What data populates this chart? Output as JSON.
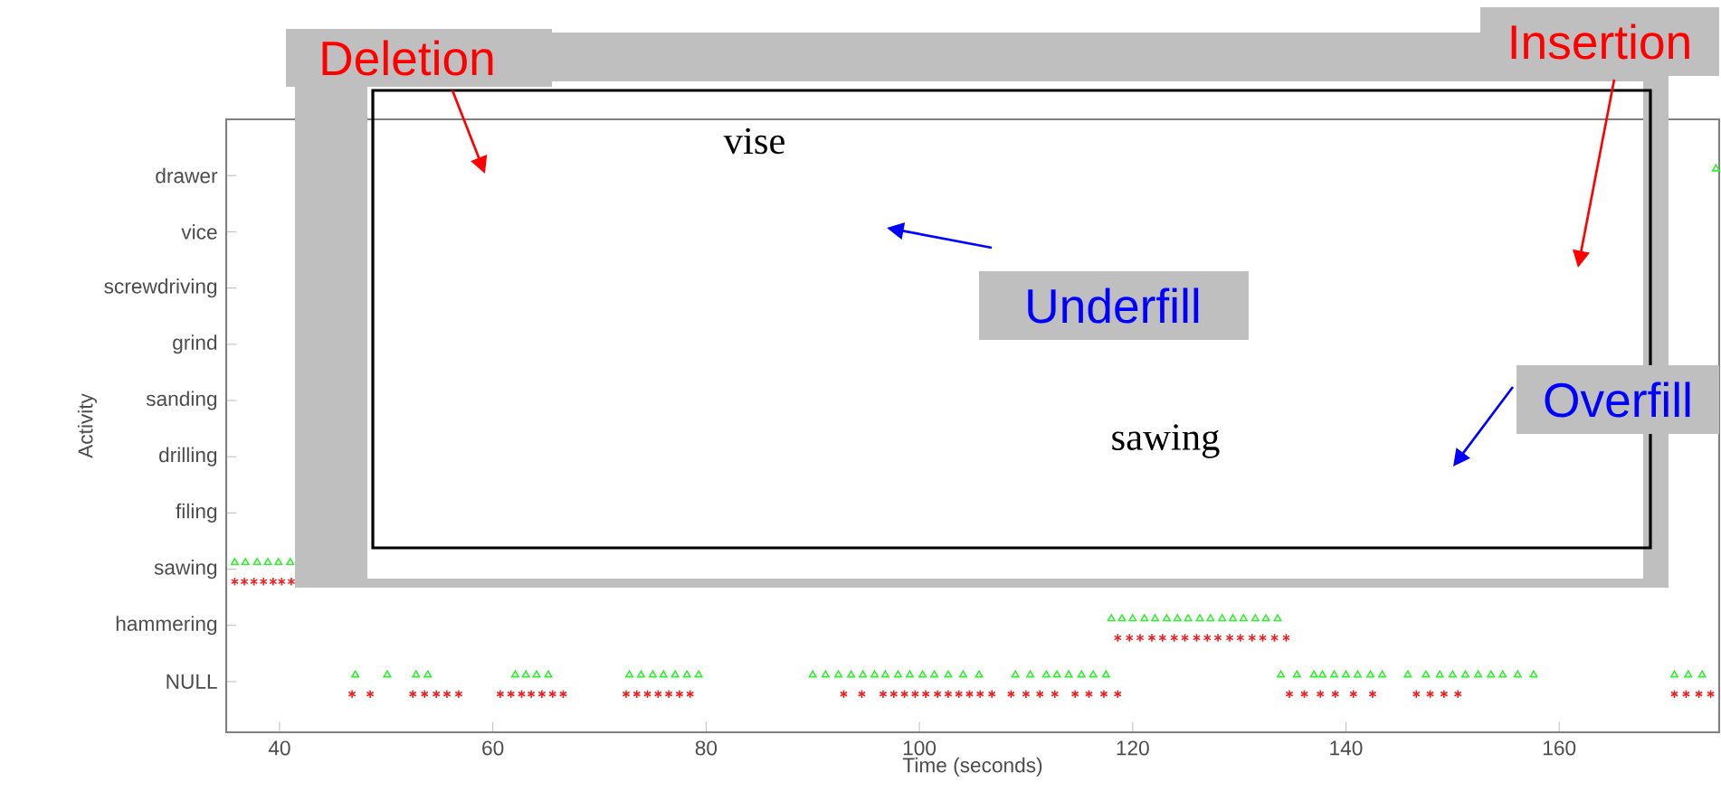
{
  "chart_data": {
    "type": "scatter",
    "orientation": "horizontal",
    "xlabel": "Time (seconds)",
    "ylabel": "Activity",
    "xlim": [
      35,
      175
    ],
    "xticks": [
      40,
      60,
      80,
      100,
      120,
      140,
      160
    ],
    "categories": [
      "drawer",
      "vice",
      "screwdriving",
      "grind",
      "sanding",
      "drilling",
      "filing",
      "sawing",
      "hammering",
      "NULL"
    ],
    "grid": false,
    "series": [
      {
        "color": "#33ee33",
        "marker": "triangle",
        "values": [
          47.1,
          50.1,
          52.8,
          53.9,
          62.1,
          63.1,
          64.1,
          65.2,
          72.8,
          73.9,
          75,
          76,
          77.1,
          78.2,
          79.3,
          90,
          91.2,
          92.4,
          93.6,
          94.7,
          95.8,
          96.8,
          98,
          99.1,
          100.3,
          101.4,
          102.7,
          104.1,
          105.6,
          109,
          110.4,
          111.9,
          112.9,
          114,
          115.2,
          116.3,
          117.5,
          133.9,
          135.4,
          137,
          137.8,
          138.9,
          140,
          141.1,
          142.3,
          143.4,
          145.8,
          147.5,
          148.8,
          150,
          151.2,
          152.4,
          153.6,
          154.7,
          156.1,
          157.6,
          170.8,
          172.1,
          173.4,
          118,
          119,
          120,
          121.1,
          122.1,
          123.2,
          124.2,
          125.2,
          126.3,
          127.3,
          128.4,
          129.4,
          130.4,
          131.5,
          132.5,
          133.6,
          35.8,
          36.8,
          37.9,
          38.9,
          39.9,
          41,
          174.7
        ],
        "x": [
          "NULL",
          "NULL",
          "NULL",
          "NULL",
          "NULL",
          "NULL",
          "NULL",
          "NULL",
          "NULL",
          "NULL",
          "NULL",
          "NULL",
          "NULL",
          "NULL",
          "NULL",
          "NULL",
          "NULL",
          "NULL",
          "NULL",
          "NULL",
          "NULL",
          "NULL",
          "NULL",
          "NULL",
          "NULL",
          "NULL",
          "NULL",
          "NULL",
          "NULL",
          "NULL",
          "NULL",
          "NULL",
          "NULL",
          "NULL",
          "NULL",
          "NULL",
          "NULL",
          "NULL",
          "NULL",
          "NULL",
          "NULL",
          "NULL",
          "NULL",
          "NULL",
          "NULL",
          "NULL",
          "NULL",
          "NULL",
          "NULL",
          "NULL",
          "NULL",
          "NULL",
          "NULL",
          "NULL",
          "NULL",
          "NULL",
          "NULL",
          "NULL",
          "NULL",
          "hammering",
          "hammering",
          "hammering",
          "hammering",
          "hammering",
          "hammering",
          "hammering",
          "hammering",
          "hammering",
          "hammering",
          "hammering",
          "hammering",
          "hammering",
          "hammering",
          "hammering",
          "hammering",
          "sawing",
          "sawing",
          "sawing",
          "sawing",
          "sawing",
          "sawing",
          "drawer"
        ]
      },
      {
        "color": "#ee2222",
        "marker": "cross",
        "values": [
          46.8,
          48.5,
          52.5,
          53.6,
          54.7,
          55.7,
          56.8,
          60.7,
          61.7,
          62.7,
          63.6,
          64.6,
          65.6,
          66.6,
          72.5,
          73.5,
          74.5,
          75.5,
          76.5,
          77.5,
          78.5,
          92.9,
          94.6,
          96.6,
          97.6,
          98.6,
          99.6,
          100.6,
          101.7,
          102.7,
          103.7,
          104.7,
          105.7,
          106.8,
          108.6,
          110,
          111.3,
          112.7,
          114.6,
          115.9,
          117.3,
          118.6,
          134.7,
          136.1,
          137.6,
          139,
          140.7,
          142.5,
          146.6,
          147.9,
          149.2,
          150.5,
          170.8,
          171.9,
          173.1,
          174.2,
          118.6,
          119.7,
          120.7,
          121.8,
          122.8,
          123.9,
          124.9,
          126,
          127,
          128,
          129.1,
          130.1,
          131.2,
          132.2,
          133.3,
          134.4,
          35.8,
          36.7,
          37.6,
          38.5,
          39.4,
          40.2,
          41.1
        ],
        "x": [
          "NULL",
          "NULL",
          "NULL",
          "NULL",
          "NULL",
          "NULL",
          "NULL",
          "NULL",
          "NULL",
          "NULL",
          "NULL",
          "NULL",
          "NULL",
          "NULL",
          "NULL",
          "NULL",
          "NULL",
          "NULL",
          "NULL",
          "NULL",
          "NULL",
          "NULL",
          "NULL",
          "NULL",
          "NULL",
          "NULL",
          "NULL",
          "NULL",
          "NULL",
          "NULL",
          "NULL",
          "NULL",
          "NULL",
          "NULL",
          "NULL",
          "NULL",
          "NULL",
          "NULL",
          "NULL",
          "NULL",
          "NULL",
          "NULL",
          "NULL",
          "NULL",
          "NULL",
          "NULL",
          "NULL",
          "NULL",
          "NULL",
          "NULL",
          "NULL",
          "NULL",
          "NULL",
          "NULL",
          "NULL",
          "NULL",
          "hammering",
          "hammering",
          "hammering",
          "hammering",
          "hammering",
          "hammering",
          "hammering",
          "hammering",
          "hammering",
          "hammering",
          "hammering",
          "hammering",
          "hammering",
          "hammering",
          "hammering",
          "hammering",
          "sawing",
          "sawing",
          "sawing",
          "sawing",
          "sawing",
          "sawing",
          "sawing"
        ]
      }
    ],
    "annotations": [
      "Deletion",
      "vise",
      "Insertion",
      "Underfill",
      "sawing",
      "Overfill"
    ]
  }
}
